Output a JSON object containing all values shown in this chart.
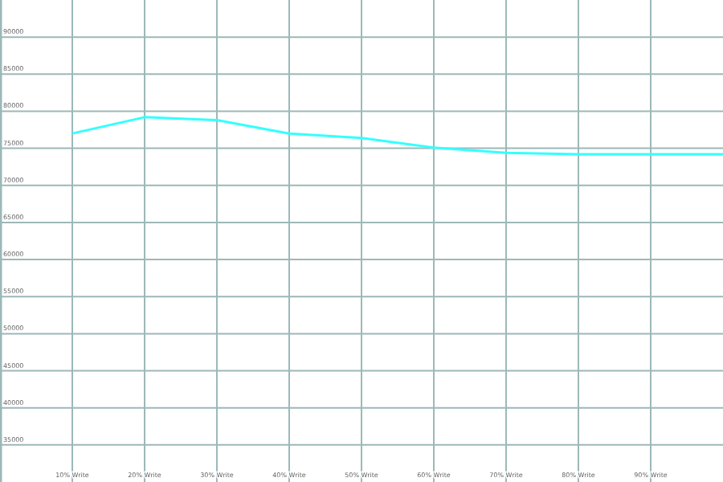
{
  "chart_data": {
    "type": "line",
    "x": [
      10,
      20,
      30,
      40,
      50,
      60,
      70,
      80,
      90,
      100
    ],
    "series": [
      {
        "color": "#33ffff",
        "values": [
          77000,
          79200,
          78800,
          77000,
          76400,
          75100,
          74400,
          74200,
          74200,
          74200
        ]
      }
    ],
    "xlim": [
      0,
      100
    ],
    "xticks": [
      {
        "value": 10,
        "label": "10% Write"
      },
      {
        "value": 20,
        "label": "20% Write"
      },
      {
        "value": 30,
        "label": "30% Write"
      },
      {
        "value": 40,
        "label": "40% Write"
      },
      {
        "value": 50,
        "label": "50% Write"
      },
      {
        "value": 60,
        "label": "60% Write"
      },
      {
        "value": 70,
        "label": "70% Write"
      },
      {
        "value": 80,
        "label": "80% Write"
      },
      {
        "value": 90,
        "label": "90% Write"
      }
    ],
    "ylim": [
      30000,
      95000
    ],
    "yticks": [
      35000,
      40000,
      45000,
      50000,
      55000,
      60000,
      65000,
      70000,
      75000,
      80000,
      85000,
      90000
    ],
    "grid": true,
    "marker": "none",
    "line_style": "solid"
  }
}
